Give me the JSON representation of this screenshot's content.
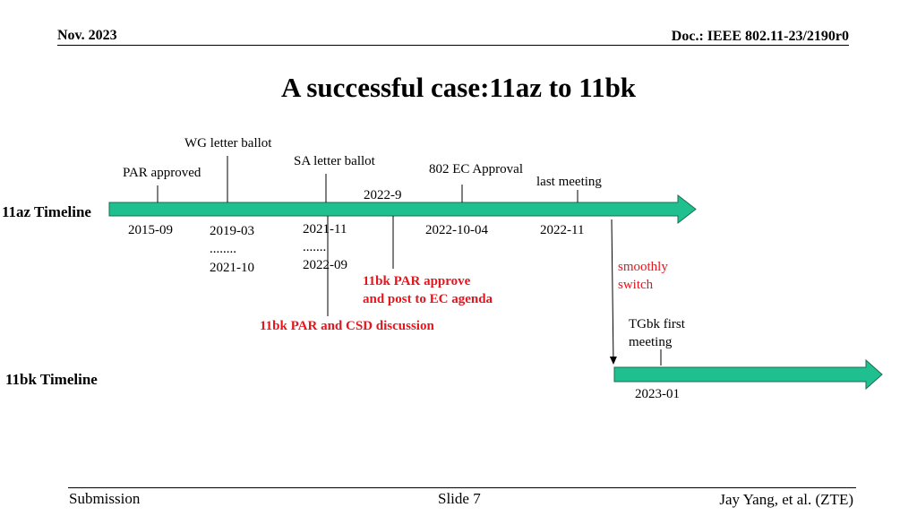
{
  "header": {
    "date": "Nov. 2023",
    "doc": "Doc.: IEEE 802.11-23/2190r0"
  },
  "title": "A successful case:11az to 11bk",
  "timelines": {
    "az_label": "11az Timeline",
    "bk_label": "11bk Timeline"
  },
  "colors": {
    "arrow_fill": "#1fbf8f",
    "red_text": "#e8141c"
  },
  "az_events_above": {
    "wg_letter_ballot": "WG letter ballot",
    "sa_letter_ballot": "SA letter ballot",
    "par_approved": "PAR approved",
    "ec_approval": "802 EC Approval",
    "last_meeting": "last meeting",
    "date_2022_9": "2022-9"
  },
  "az_dates_below": {
    "d2015": "2015-09",
    "d2019": "2019-03",
    "dots1": "........",
    "d2021_10": "2021-10",
    "d2021_11": "2021-11",
    "dots2": ".......",
    "d2022_09": "2022-09",
    "d2022_10_04": "2022-10-04",
    "d2022_11": "2022-11"
  },
  "annotations": {
    "par_approve_line1": "11bk PAR approve",
    "par_approve_line2": "and post to EC agenda",
    "par_csd": "11bk PAR and CSD discussion",
    "smoothly_line1": "smoothly",
    "smoothly_line2": "switch",
    "tgbk_line1": "TGbk first",
    "tgbk_line2": "meeting"
  },
  "bk_dates": {
    "d2023_01": "2023-01"
  },
  "footer": {
    "submission": "Submission",
    "slide": "Slide 7",
    "author": "Jay Yang, et al. (ZTE)"
  }
}
